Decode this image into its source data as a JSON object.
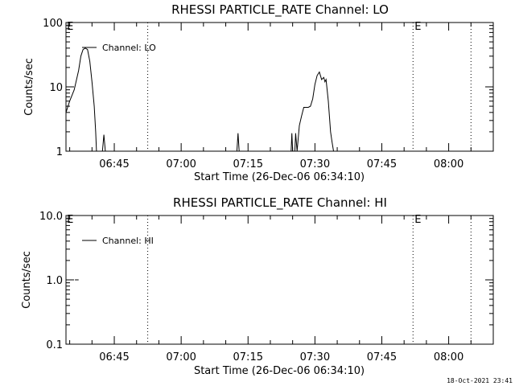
{
  "footer_timestamp": "18-Oct-2021 23:41",
  "chart_data": [
    {
      "type": "line",
      "title": "RHESSI PARTICLE_RATE Channel: LO",
      "xlabel": "Start Time (26-Dec-06 06:34:10)",
      "ylabel": "Counts/sec",
      "yscale": "log",
      "ylim": [
        1,
        100
      ],
      "yticks": [
        "1",
        "10",
        "100"
      ],
      "xlim": [
        "06:34:10",
        "08:10:00"
      ],
      "xticks": [
        "06:45",
        "07:00",
        "07:15",
        "07:30",
        "07:45",
        "08:00"
      ],
      "legend": "Channel: LO",
      "legend_placement": "top-left",
      "markers": [
        {
          "x": "06:34",
          "text": "E"
        },
        {
          "x": "07:52",
          "text": "E"
        }
      ],
      "series": [
        {
          "name": "Channel: LO",
          "segments": [
            [
              [
                "06:34:10",
                4
              ],
              [
                "06:35:00",
                6
              ],
              [
                "06:36:00",
                9
              ],
              [
                "06:37:00",
                18
              ],
              [
                "06:37:30",
                30
              ],
              [
                "06:38:00",
                38
              ],
              [
                "06:38:30",
                40
              ],
              [
                "06:39:00",
                38
              ],
              [
                "06:39:30",
                25
              ],
              [
                "06:40:00",
                12
              ],
              [
                "06:40:30",
                5
              ],
              [
                "06:40:50",
                2
              ],
              [
                "06:41:00",
                1
              ]
            ],
            [
              [
                "06:42:20",
                1
              ],
              [
                "06:42:40",
                1.8
              ],
              [
                "06:43:00",
                1
              ]
            ],
            [
              [
                "07:12:30",
                1
              ],
              [
                "07:12:45",
                1.9
              ],
              [
                "07:13:00",
                1
              ]
            ],
            [
              [
                "07:24:40",
                1
              ],
              [
                "07:24:50",
                1.9
              ],
              [
                "07:25:00",
                1
              ]
            ],
            [
              [
                "07:25:30",
                1
              ],
              [
                "07:25:40",
                1.9
              ],
              [
                "07:26:00",
                1
              ],
              [
                "07:26:30",
                2.5
              ],
              [
                "07:27:00",
                3.5
              ],
              [
                "07:27:30",
                4.8
              ],
              [
                "07:28:00",
                4.8
              ],
              [
                "07:28:30",
                4.8
              ],
              [
                "07:29:00",
                5
              ],
              [
                "07:29:30",
                6.5
              ],
              [
                "07:30:00",
                11
              ],
              [
                "07:30:30",
                15
              ],
              [
                "07:31:00",
                17
              ],
              [
                "07:31:30",
                13
              ],
              [
                "07:32:00",
                14
              ],
              [
                "07:32:15",
                12
              ],
              [
                "07:32:30",
                13
              ],
              [
                "07:33:00",
                6
              ],
              [
                "07:33:30",
                2
              ],
              [
                "07:33:50",
                1.4
              ],
              [
                "07:34:10",
                1
              ]
            ]
          ]
        }
      ]
    },
    {
      "type": "line",
      "title": "RHESSI PARTICLE_RATE Channel: HI",
      "xlabel": "Start Time (26-Dec-06 06:34:10)",
      "ylabel": "Counts/sec",
      "yscale": "log",
      "ylim": [
        0.1,
        10
      ],
      "yticks": [
        "0.1",
        "1.0",
        "10.0"
      ],
      "xlim": [
        "06:34:10",
        "08:10:00"
      ],
      "xticks": [
        "06:45",
        "07:00",
        "07:15",
        "07:30",
        "07:45",
        "08:00"
      ],
      "legend": "Channel: HI",
      "legend_placement": "top-left",
      "markers": [
        {
          "x": "06:34",
          "text": "E"
        },
        {
          "x": "07:52",
          "text": "E"
        }
      ],
      "series": [
        {
          "name": "Channel: HI",
          "segments": [
            [
              [
                "06:36:10",
                1
              ],
              [
                "06:37:00",
                1
              ]
            ]
          ]
        }
      ]
    }
  ]
}
